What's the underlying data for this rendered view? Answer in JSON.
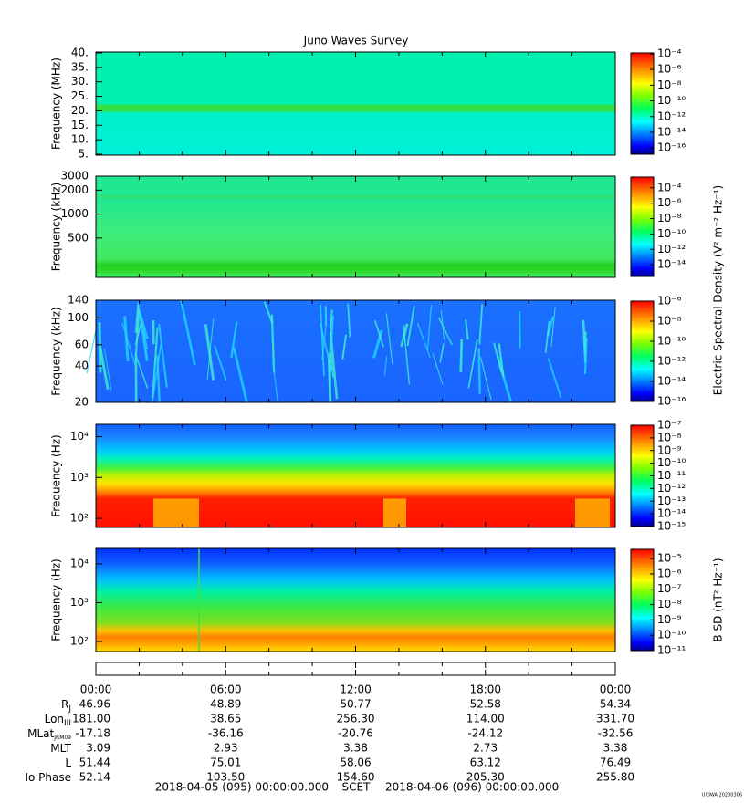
{
  "title": "Juno Waves Survey",
  "chart_data": [
    {
      "type": "heatmap",
      "ylabel": "Frequency (MHz)",
      "ylog": false,
      "ylim": [
        4.7,
        40.3
      ],
      "yticks": [
        {
          "value": 40,
          "label": "40."
        },
        {
          "value": 35,
          "label": "35."
        },
        {
          "value": 30,
          "label": "30."
        },
        {
          "value": 25,
          "label": "25."
        },
        {
          "value": 20,
          "label": "20."
        },
        {
          "value": 15,
          "label": "15."
        },
        {
          "value": 10,
          "label": "10."
        },
        {
          "value": 5,
          "label": "5."
        }
      ],
      "clim": [
        1.6e-17,
        0.00013
      ],
      "cticks": [
        {
          "value": 0.0001,
          "label": "10⁻⁴"
        },
        {
          "value": 1e-06,
          "label": "10⁻⁶"
        },
        {
          "value": 1e-08,
          "label": "10⁻⁸"
        },
        {
          "value": 1e-10,
          "label": "10⁻¹⁰"
        },
        {
          "value": 1e-12,
          "label": "10⁻¹²"
        },
        {
          "value": 1e-14,
          "label": "10⁻¹⁴"
        },
        {
          "value": 1e-16,
          "label": "10⁻¹⁶"
        }
      ]
    },
    {
      "type": "heatmap",
      "ylabel": "Frequency (kHz)",
      "ylog": true,
      "ylim": [
        160,
        3000
      ],
      "yticks": [
        500,
        1000,
        2000,
        3000
      ],
      "clim": [
        3e-16,
        0.0025
      ],
      "cticks": [
        {
          "value": 0.0001,
          "label": "10⁻⁴"
        },
        {
          "value": 1e-06,
          "label": "10⁻⁶"
        },
        {
          "value": 1e-08,
          "label": "10⁻⁸"
        },
        {
          "value": 1e-10,
          "label": "10⁻¹⁰"
        },
        {
          "value": 1e-12,
          "label": "10⁻¹²"
        },
        {
          "value": 1e-14,
          "label": "10⁻¹⁴"
        }
      ]
    },
    {
      "type": "heatmap",
      "ylabel": "Frequency (kHz)",
      "ylog": true,
      "ylim": [
        20,
        140
      ],
      "yticks": [
        20,
        40,
        60,
        100,
        140
      ],
      "clim": [
        1e-16,
        1e-06
      ],
      "cticks": [
        {
          "value": 1e-06,
          "label": "10⁻⁶"
        },
        {
          "value": 1e-08,
          "label": "10⁻⁸"
        },
        {
          "value": 1e-10,
          "label": "10⁻¹⁰"
        },
        {
          "value": 1e-12,
          "label": "10⁻¹²"
        },
        {
          "value": 1e-14,
          "label": "10⁻¹⁴"
        },
        {
          "value": 1e-16,
          "label": "10⁻¹⁶"
        }
      ]
    },
    {
      "type": "heatmap",
      "ylabel": "Frequency (Hz)",
      "ylog": true,
      "ylim": [
        60,
        20000
      ],
      "yticks": [
        {
          "value": 100,
          "label": "10²"
        },
        {
          "value": 1000,
          "label": "10³"
        },
        {
          "value": 10000,
          "label": "10⁴"
        }
      ],
      "clim": [
        1e-15,
        1e-07
      ],
      "cticks": [
        {
          "value": 1e-07,
          "label": "10⁻⁷"
        },
        {
          "value": 1e-08,
          "label": "10⁻⁸"
        },
        {
          "value": 1e-09,
          "label": "10⁻⁹"
        },
        {
          "value": 1e-10,
          "label": "10⁻¹⁰"
        },
        {
          "value": 1e-11,
          "label": "10⁻¹¹"
        },
        {
          "value": 1e-12,
          "label": "10⁻¹²"
        },
        {
          "value": 1e-13,
          "label": "10⁻¹³"
        },
        {
          "value": 1e-14,
          "label": "10⁻¹⁴"
        },
        {
          "value": 1e-15,
          "label": "10⁻¹⁵"
        }
      ]
    },
    {
      "type": "heatmap",
      "ylabel": "Frequency (Hz)",
      "ylog": true,
      "ylim": [
        55,
        25000
      ],
      "yticks": [
        {
          "value": 100,
          "label": "10²"
        },
        {
          "value": 1000,
          "label": "10³"
        },
        {
          "value": 10000,
          "label": "10⁴"
        }
      ],
      "clim": [
        1e-11,
        4e-05
      ],
      "clabel": "B SD (nT² Hz⁻¹)",
      "cticks": [
        {
          "value": 1e-05,
          "label": "10⁻⁵"
        },
        {
          "value": 1e-06,
          "label": "10⁻⁶"
        },
        {
          "value": 1e-07,
          "label": "10⁻⁷"
        },
        {
          "value": 1e-08,
          "label": "10⁻⁸"
        },
        {
          "value": 1e-09,
          "label": "10⁻⁹"
        },
        {
          "value": 1e-10,
          "label": "10⁻¹⁰"
        },
        {
          "value": 1e-11,
          "label": "10⁻¹¹"
        }
      ]
    }
  ],
  "electric_label": "Electric Spectral Density (V² m⁻² Hz⁻¹)",
  "time_ticks": [
    "00:00",
    "06:00",
    "12:00",
    "18:00",
    "00:00"
  ],
  "ephemeris": [
    {
      "label": "R",
      "sub": "J",
      "values": [
        "46.96",
        "48.89",
        "50.77",
        "52.58",
        "54.34"
      ]
    },
    {
      "label": "Lon",
      "sub": "III",
      "values": [
        "181.00",
        "38.65",
        "256.30",
        "114.00",
        "331.70"
      ]
    },
    {
      "label": "MLat",
      "sub": "JRM09",
      "values": [
        "-17.18",
        "-36.16",
        "-20.76",
        "-24.12",
        "-32.56"
      ]
    },
    {
      "label": "MLT",
      "values": [
        "3.09",
        "2.93",
        "3.38",
        "2.73",
        "3.38"
      ]
    },
    {
      "label": "L",
      "values": [
        "51.44",
        "75.01",
        "58.06",
        "63.12",
        "76.49"
      ]
    },
    {
      "label": "Io Phase",
      "values": [
        "52.14",
        "103.50",
        "154.60",
        "205.30",
        "255.80"
      ]
    }
  ],
  "scet": {
    "start": "2018-04-05 (095) 00:00:00.000",
    "label": "SCET",
    "end": "2018-04-06 (096) 00:00:00.000"
  },
  "footer": "UIOWA 20200306"
}
